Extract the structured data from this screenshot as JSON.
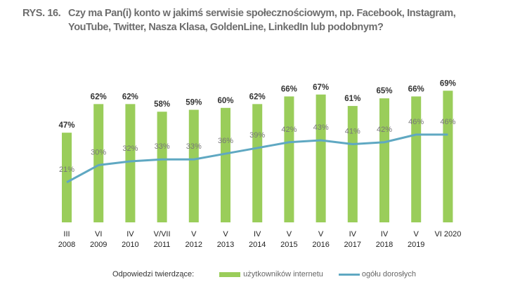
{
  "chart_data": {
    "type": "bar",
    "title_number": "RYS. 16.",
    "title": "Czy ma Pan(i) konto w jakimś serwisie społecznościowym, np. Facebook, Instagram, YouTube, Twitter, Nasza Klasa, GoldenLine, LinkedIn lub podobnym?",
    "categories": [
      [
        "III",
        "2008"
      ],
      [
        "VI",
        "2009"
      ],
      [
        "IV",
        "2010"
      ],
      [
        "V/VII",
        "2011"
      ],
      [
        "V",
        "2012"
      ],
      [
        "V",
        "2013"
      ],
      [
        "IV",
        "2014"
      ],
      [
        "V",
        "2015"
      ],
      [
        "V",
        "2016"
      ],
      [
        "IV",
        "2017"
      ],
      [
        "IV",
        "2018"
      ],
      [
        "V",
        "2019"
      ],
      [
        "VI 2020",
        ""
      ]
    ],
    "series": [
      {
        "name": "użytkowników internetu",
        "type": "bar",
        "color": "#9acd5a",
        "values": [
          47,
          62,
          62,
          58,
          59,
          60,
          62,
          66,
          67,
          61,
          65,
          66,
          69
        ]
      },
      {
        "name": "ogółu dorosłych",
        "type": "line",
        "color": "#5fa8c2",
        "values": [
          21,
          30,
          32,
          33,
          33,
          36,
          39,
          42,
          43,
          41,
          42,
          46,
          46
        ]
      }
    ],
    "unit": "%",
    "legend_title": "Odpowiedzi twierdzące:",
    "legend_position": "bottom",
    "ylim": [
      0,
      100
    ],
    "grid": false
  }
}
